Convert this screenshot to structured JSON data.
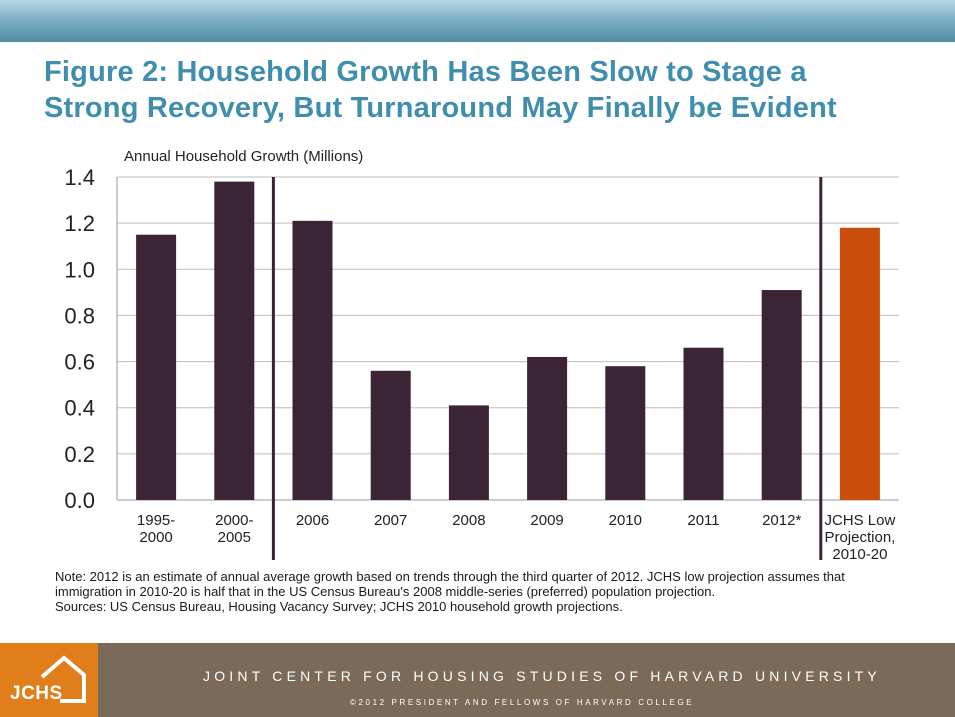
{
  "title_line1": "Figure 2: Household Growth Has Been Slow to Stage a",
  "title_line2": "Strong Recovery, But Turnaround May Finally be Evident",
  "chart_data": {
    "type": "bar",
    "ylabel": "Annual Household Growth (Millions)",
    "ylim": [
      0,
      1.4
    ],
    "yticks": [
      "0.0",
      "0.2",
      "0.4",
      "0.6",
      "0.8",
      "1.0",
      "1.2",
      "1.4"
    ],
    "grid": true,
    "categories": [
      [
        "1995-",
        "2000"
      ],
      [
        "2000-",
        "2005"
      ],
      [
        "2006"
      ],
      [
        "2007"
      ],
      [
        "2008"
      ],
      [
        "2009"
      ],
      [
        "2010"
      ],
      [
        "2011"
      ],
      [
        "2012*"
      ],
      [
        "JCHS Low",
        "Projection,",
        "2010-20"
      ]
    ],
    "values": [
      1.15,
      1.38,
      1.21,
      0.56,
      0.41,
      0.62,
      0.58,
      0.66,
      0.91,
      1.18
    ],
    "colors": [
      "#3b2435",
      "#3b2435",
      "#3b2435",
      "#3b2435",
      "#3b2435",
      "#3b2435",
      "#3b2435",
      "#3b2435",
      "#3b2435",
      "#c94e0b"
    ],
    "separators_after_index": [
      1,
      8
    ]
  },
  "note": "Note: 2012 is an estimate of annual average growth based on trends through the third quarter of 2012. JCHS low projection assumes that immigration in 2010-20 is half that in the US Census Bureau's 2008 middle-series (preferred) population projection.",
  "sources": "Sources: US Census Bureau, Housing Vacancy Survey; JCHS 2010 household growth projections.",
  "footer": {
    "logo_text": "JCHS",
    "org": "JOINT CENTER FOR HOUSING STUDIES OF HARVARD UNIVERSITY",
    "copyright": "©2012 PRESIDENT AND FELLOWS OF HARVARD COLLEGE"
  }
}
